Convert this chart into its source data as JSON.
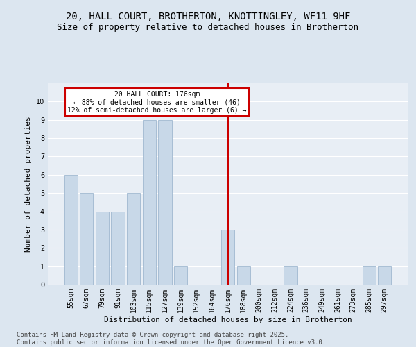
{
  "title": "20, HALL COURT, BROTHERTON, KNOTTINGLEY, WF11 9HF",
  "subtitle": "Size of property relative to detached houses in Brotherton",
  "xlabel": "Distribution of detached houses by size in Brotherton",
  "ylabel": "Number of detached properties",
  "categories": [
    "55sqm",
    "67sqm",
    "79sqm",
    "91sqm",
    "103sqm",
    "115sqm",
    "127sqm",
    "139sqm",
    "152sqm",
    "164sqm",
    "176sqm",
    "188sqm",
    "200sqm",
    "212sqm",
    "224sqm",
    "236sqm",
    "249sqm",
    "261sqm",
    "273sqm",
    "285sqm",
    "297sqm"
  ],
  "values": [
    6,
    5,
    4,
    4,
    5,
    9,
    9,
    1,
    0,
    0,
    3,
    1,
    0,
    0,
    1,
    0,
    0,
    0,
    0,
    1,
    1
  ],
  "bar_color": "#c8d8e8",
  "bar_edge_color": "#a0b8d0",
  "highlight_index": 10,
  "vline_color": "#cc0000",
  "annotation_text": "20 HALL COURT: 176sqm\n← 88% of detached houses are smaller (46)\n12% of semi-detached houses are larger (6) →",
  "annotation_box_color": "#cc0000",
  "annotation_text_color": "black",
  "ylim": [
    0,
    11
  ],
  "yticks": [
    0,
    1,
    2,
    3,
    4,
    5,
    6,
    7,
    8,
    9,
    10,
    11
  ],
  "background_color": "#dce6f0",
  "plot_bg_color": "#e8eef5",
  "grid_color": "#ffffff",
  "footer_text": "Contains HM Land Registry data © Crown copyright and database right 2025.\nContains public sector information licensed under the Open Government Licence v3.0.",
  "title_fontsize": 10,
  "subtitle_fontsize": 9,
  "axis_label_fontsize": 8,
  "tick_fontsize": 7,
  "footer_fontsize": 6.5
}
